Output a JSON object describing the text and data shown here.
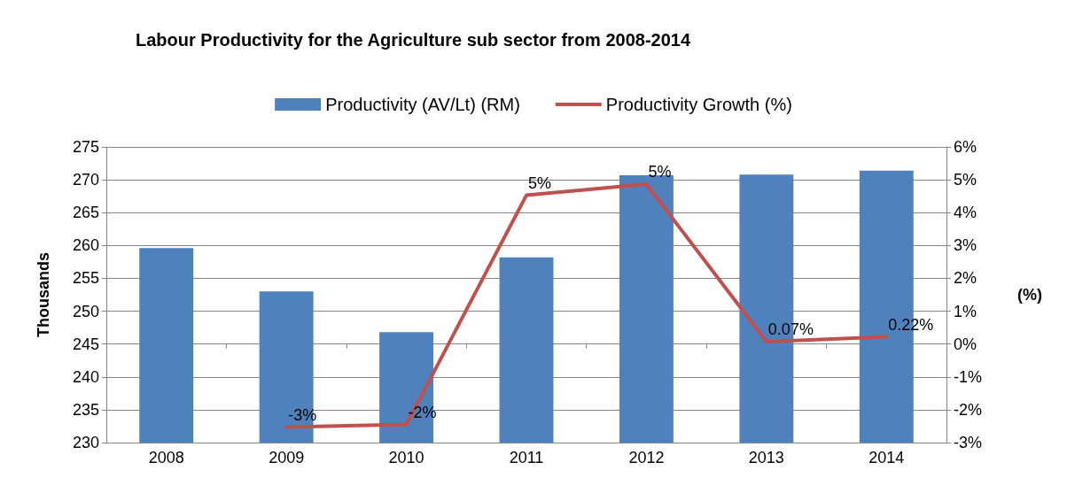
{
  "chart_data": {
    "type": "bar",
    "title": "Labour Productivity for the Agriculture sub sector from 2008-2014",
    "ylabel": "Thousands",
    "y2label": "(%)",
    "categories": [
      "2008",
      "2009",
      "2010",
      "2011",
      "2012",
      "2013",
      "2014"
    ],
    "series": [
      {
        "name": "Productivity (AV/Lt) (RM)",
        "color": "#4f81bd",
        "values": [
          259.6,
          253.0,
          246.8,
          258.2,
          270.7,
          270.8,
          271.4
        ]
      },
      {
        "name": "Productivity Growth (%)",
        "type": "line",
        "axis": "y2",
        "color": "#c0504d",
        "marker": "none",
        "values": [
          null,
          -2.53,
          -2.45,
          4.53,
          4.87,
          0.07,
          0.22
        ],
        "value_labels": [
          null,
          "-3%",
          "-2%",
          "5%",
          "5%",
          "0.07%",
          "0.22%"
        ]
      }
    ],
    "ylim": [
      230,
      275
    ],
    "yticks": [
      230,
      235,
      240,
      245,
      250,
      255,
      260,
      265,
      270,
      275
    ],
    "y2lim": [
      -3,
      6
    ],
    "y2ticks": [
      {
        "value": -3,
        "label": "-3%"
      },
      {
        "value": -2,
        "label": "-2%"
      },
      {
        "value": -1,
        "label": "-1%"
      },
      {
        "value": 0,
        "label": "0%"
      },
      {
        "value": 1,
        "label": "1%"
      },
      {
        "value": 2,
        "label": "2%"
      },
      {
        "value": 3,
        "label": "3%"
      },
      {
        "value": 4,
        "label": "4%"
      },
      {
        "value": 5,
        "label": "5%"
      },
      {
        "value": 6,
        "label": "6%"
      }
    ],
    "grid": "y",
    "legend": "top"
  }
}
